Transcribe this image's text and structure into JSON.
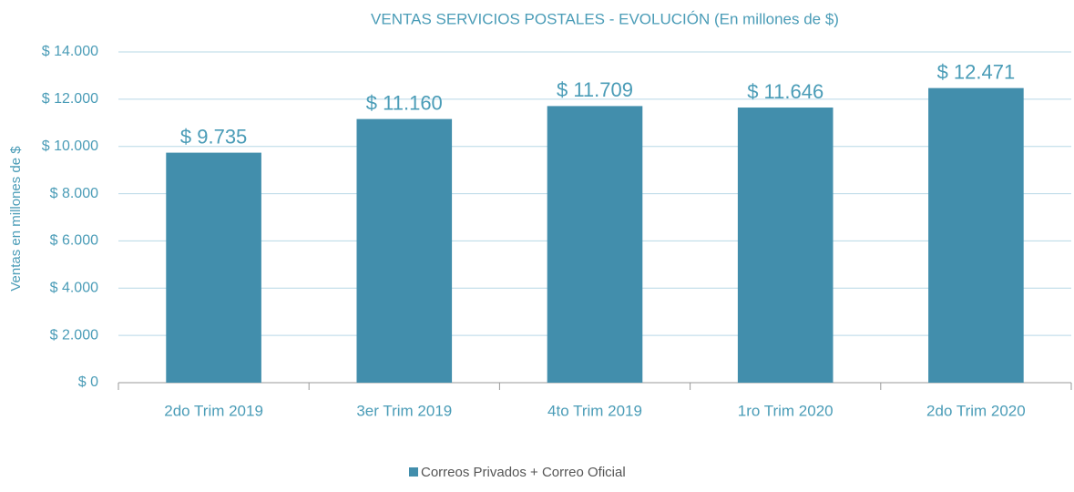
{
  "chart_data": {
    "type": "bar",
    "title": "VENTAS SERVICIOS POSTALES - EVOLUCIÓN (En millones de $)",
    "y_label": "Ventas en millones de $",
    "categories": [
      "2do Trim 2019",
      "3er Trim 2019",
      "4to Trim 2019",
      "1ro Trim 2020",
      "2do Trim 2020"
    ],
    "series": [
      {
        "name": "Correos Privados + Correo Oficial",
        "color": "#428eac",
        "values": [
          9735,
          11160,
          11709,
          11646,
          12471
        ],
        "value_labels": [
          "$ 9.735",
          "$ 11.160",
          "$ 11.709",
          "$ 11.646",
          "$ 12.471"
        ]
      }
    ],
    "ylim": [
      0,
      14000
    ],
    "yticks": [
      {
        "value": 0,
        "label": "$ 0"
      },
      {
        "value": 2000,
        "label": "$ 2.000"
      },
      {
        "value": 4000,
        "label": "$ 4.000"
      },
      {
        "value": 6000,
        "label": "$ 6.000"
      },
      {
        "value": 8000,
        "label": "$ 8.000"
      },
      {
        "value": 10000,
        "label": "$ 10.000"
      },
      {
        "value": 12000,
        "label": "$ 12.000"
      },
      {
        "value": 14000,
        "label": "$ 14.000"
      }
    ],
    "grid": true,
    "legend": "bottom"
  }
}
